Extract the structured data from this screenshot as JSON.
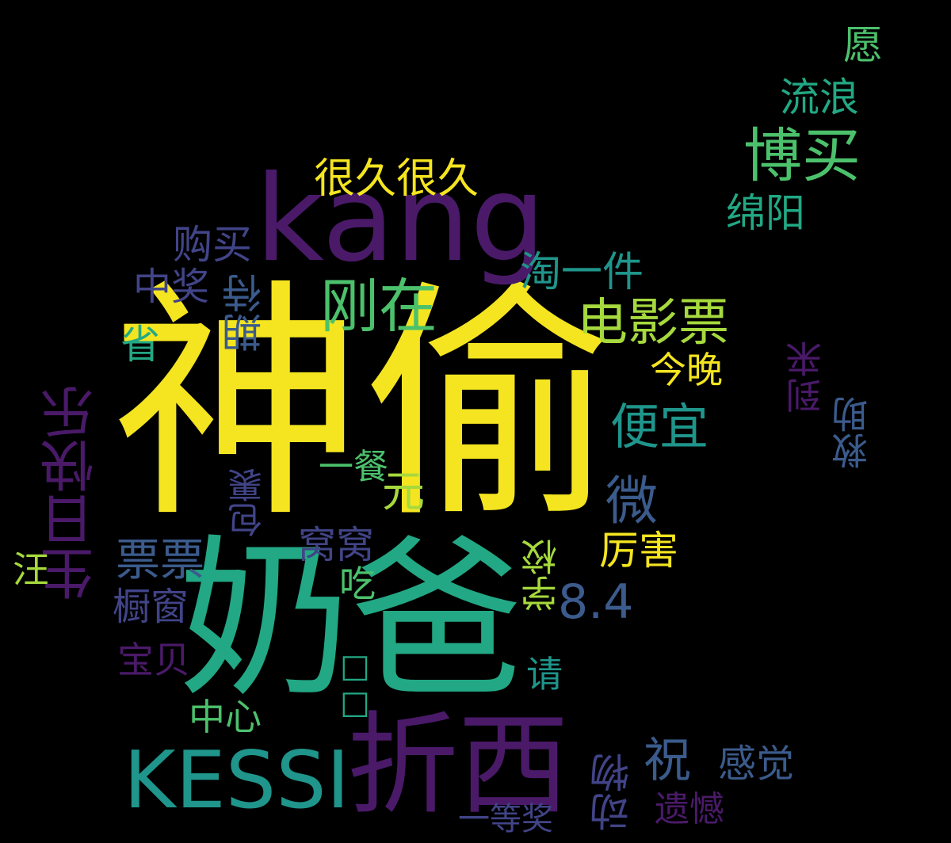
{
  "palette": {
    "yellow": "#f4e520",
    "lime": "#a6d93d",
    "green": "#4cc16c",
    "emerald": "#22a884",
    "teal": "#1f958b",
    "blue": "#3b5b8c",
    "indigo": "#414487",
    "purple": "#4a1a69"
  },
  "words": {
    "shentou": "神偷",
    "naiba": "奶爸",
    "kang": "kang",
    "zhexi": "折西",
    "kessi": "KESSI",
    "boyuan": "博买",
    "gangzai": "刚在",
    "dianyingpiao": "电影票",
    "pianyi": "便宜",
    "shengrikuaile": "生日快乐",
    "henjiu": "很久很久",
    "gouma": "购买",
    "tao": "淘一件",
    "liulang": "流浪",
    "mianyang": "绵阳",
    "yuan_wish": "愿",
    "zhongjiang": "中奖",
    "qidai": "期待",
    "sheng": "省",
    "wei": "微",
    "jinwan": "今晚",
    "daolai": "到来",
    "jiuzhu": "救助",
    "yican": "一餐",
    "yuan_money": "元",
    "baoguo": "包裹",
    "piaopiao": "票票",
    "wowo": "窝窝",
    "lihai": "厉害",
    "xuexiao": "学校",
    "num": "8.4",
    "wang": "汪",
    "chuchuang": "橱窗",
    "chi": "吃",
    "baobei": "宝贝",
    "qing": "请",
    "zhongxin": "中心",
    "dongwu": "动物",
    "zhu": "祝",
    "ganjue": "感觉",
    "yihan": "遗憾",
    "yidengjiang": "一等奖",
    "box": "□□"
  }
}
